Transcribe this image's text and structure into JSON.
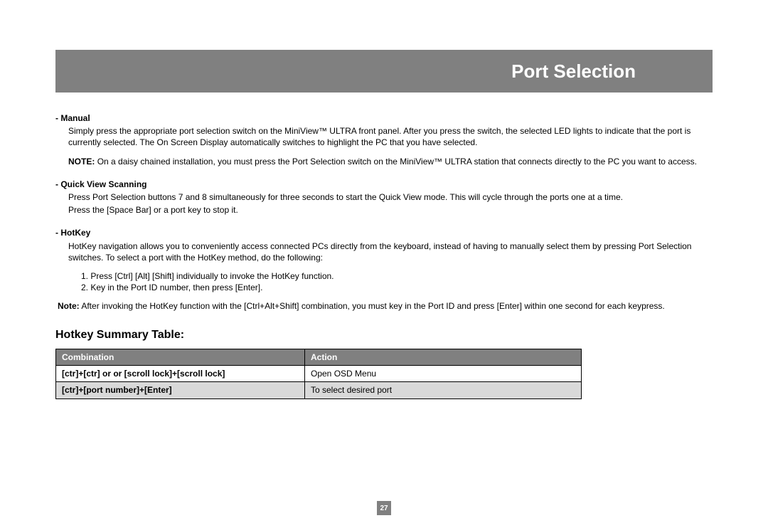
{
  "header": {
    "title": "Port Selection"
  },
  "sections": {
    "manual": {
      "label": "- Manual",
      "body": "Simply press the appropriate port selection switch on the MiniView™ ULTRA front panel.  After you press the switch, the selected LED lights to indicate that the port is currently selected.  The On Screen Display automatically switches to highlight the PC that you have selected.",
      "note_prefix": "NOTE:",
      "note": "On a daisy chained installation, you must press the Port Selection switch on the MiniView™ ULTRA station that connects directly to the PC you want to access."
    },
    "qvs": {
      "label": "- Quick View Scanning",
      "body1": "Press Port Selection buttons 7 and 8 simultaneously for three seconds to start the Quick View mode.  This will cycle through the ports one at a time.",
      "body2": "Press the [Space Bar] or a port key to stop it."
    },
    "hotkey": {
      "label": "- HotKey",
      "body": "HotKey navigation allows you to conveniently access connected PCs directly from the keyboard, instead of having to manually select them by pressing Port Selection switches.  To select a port with the HotKey method, do the following:",
      "step1": "1. Press [Ctrl] [Alt] [Shift] individually to invoke the HotKey function.",
      "step2": "2. Key in the Port ID number, then press [Enter].",
      "note_prefix": "Note:",
      "note": "After invoking the HotKey function with the [Ctrl+Alt+Shift] combination, you must key in the Port ID and press [Enter] within one second for each keypress."
    }
  },
  "table": {
    "title": "Hotkey Summary Table:",
    "header_combo": "Combination",
    "header_action": "Action",
    "rows": [
      {
        "combo": "[ctr]+[ctr]  or or [scroll lock]+[scroll lock]",
        "action": "Open OSD Menu"
      },
      {
        "combo": "[ctr]+[port number]+[Enter]",
        "action": "To select desired port"
      }
    ]
  },
  "page_number": "27",
  "colors": {
    "header_bg": "#808080",
    "header_text": "#ffffff",
    "row_alt_bg": "#d9d9d9",
    "border": "#000000"
  }
}
